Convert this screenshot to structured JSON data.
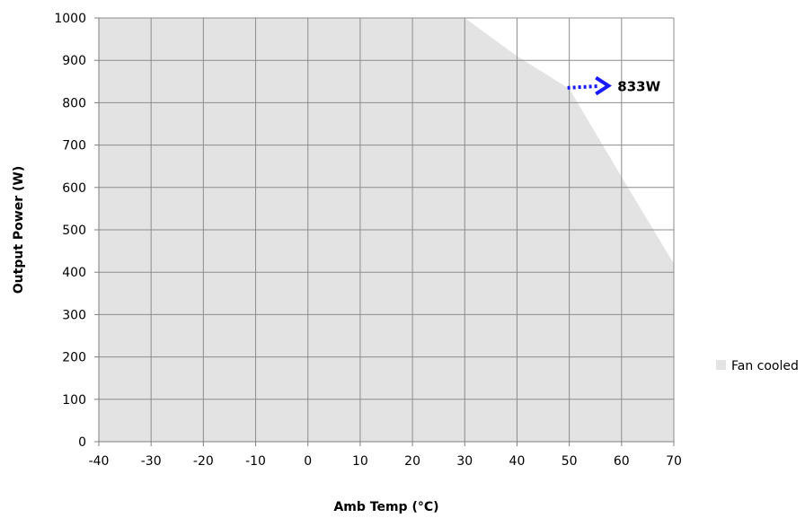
{
  "chart_data": {
    "type": "area",
    "xlabel": "Amb Temp (°C)",
    "ylabel": "Output Power (W)",
    "xlim": [
      -40,
      70
    ],
    "ylim": [
      0,
      1000
    ],
    "xticks": [
      -40,
      -30,
      -20,
      -10,
      0,
      10,
      20,
      30,
      40,
      50,
      60,
      70
    ],
    "yticks": [
      0,
      100,
      200,
      300,
      400,
      500,
      600,
      700,
      800,
      900,
      1000
    ],
    "grid": true,
    "legend_position": "right",
    "series": [
      {
        "name": "Fan cooled",
        "color": "#e3e3e3",
        "x": [
          -40,
          30,
          40,
          50,
          60,
          70
        ],
        "y": [
          1000,
          1000,
          910,
          833,
          625,
          420
        ]
      }
    ],
    "annotation": {
      "text": "833W",
      "from": [
        50,
        833
      ],
      "to": [
        57.5,
        840
      ],
      "color": "#1a1aff"
    }
  }
}
